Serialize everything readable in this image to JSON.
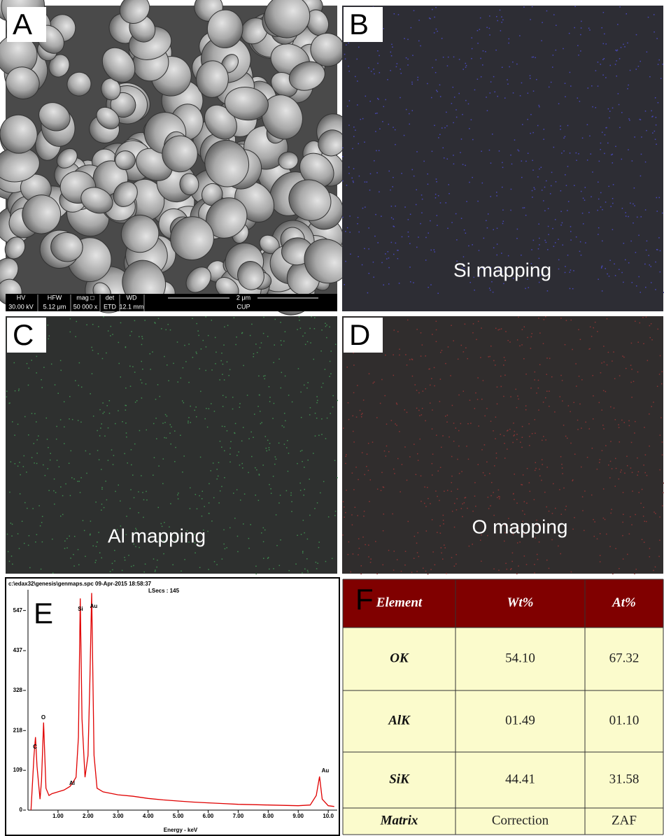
{
  "panels": [
    {
      "label": "A"
    },
    {
      "label": "B",
      "caption": "Si mapping"
    },
    {
      "label": "C",
      "caption": "Al mapping"
    },
    {
      "label": "D",
      "caption": "O mapping"
    }
  ],
  "sem_info": {
    "row1": [
      "HV",
      "HFW",
      "mag □",
      "det",
      "WD"
    ],
    "row2": [
      "30.00 kV",
      "5.12 μm",
      "50 000 x",
      "ETD",
      "12.1 mm"
    ],
    "scale": "2 μm",
    "operator": "CUP"
  },
  "chart_data": {
    "type": "line",
    "label": "E",
    "header": "c:\\edax32\\genesis\\genmaps.spc  09-Apr-2015 18:58:37",
    "subheader": "LSecs : 145",
    "xlabel": "Energy - keV",
    "x": [
      0.1,
      0.2,
      0.25,
      0.3,
      0.4,
      0.45,
      0.52,
      0.6,
      0.7,
      0.8,
      1.0,
      1.2,
      1.4,
      1.49,
      1.6,
      1.68,
      1.74,
      1.8,
      1.9,
      2.0,
      2.06,
      2.12,
      2.2,
      2.3,
      2.5,
      3.0,
      3.5,
      4.0,
      4.5,
      5.0,
      5.5,
      6.0,
      6.5,
      7.0,
      7.5,
      8.0,
      8.5,
      9.0,
      9.4,
      9.6,
      9.71,
      9.8,
      10.0,
      10.2
    ],
    "values": [
      0,
      150,
      200,
      120,
      30,
      80,
      240,
      60,
      40,
      45,
      50,
      55,
      65,
      75,
      90,
      200,
      580,
      250,
      90,
      150,
      350,
      595,
      150,
      60,
      50,
      42,
      38,
      32,
      28,
      25,
      22,
      20,
      18,
      16,
      15,
      14,
      13,
      12,
      14,
      40,
      92,
      30,
      12,
      10
    ],
    "color": "#e00000",
    "xlim": [
      0,
      10.3
    ],
    "ylim": [
      0,
      600
    ],
    "xticks": [
      {
        "value": 1,
        "label": "1.00"
      },
      {
        "value": 2,
        "label": "2.00"
      },
      {
        "value": 3,
        "label": "3.00"
      },
      {
        "value": 4,
        "label": "4.00"
      },
      {
        "value": 5,
        "label": "5.00"
      },
      {
        "value": 6,
        "label": "6.00"
      },
      {
        "value": 7,
        "label": "7.00"
      },
      {
        "value": 8,
        "label": "8.00"
      },
      {
        "value": 9,
        "label": "9.00"
      },
      {
        "value": 10,
        "label": "10.0"
      }
    ],
    "yticks": [
      0,
      109,
      218,
      328,
      437,
      547
    ],
    "annotations": [
      "C",
      "O",
      "Al",
      "Si",
      "Au",
      "Au"
    ]
  },
  "table": {
    "label": "F",
    "header": [
      "Element",
      "Wt%",
      "At%"
    ],
    "rows": [
      [
        "OK",
        "54.10",
        "67.32"
      ],
      [
        "AlK",
        "01.49",
        "01.10"
      ],
      [
        "SiK",
        "44.41",
        "31.58"
      ],
      [
        "Matrix",
        "Correction",
        "ZAF"
      ]
    ]
  }
}
